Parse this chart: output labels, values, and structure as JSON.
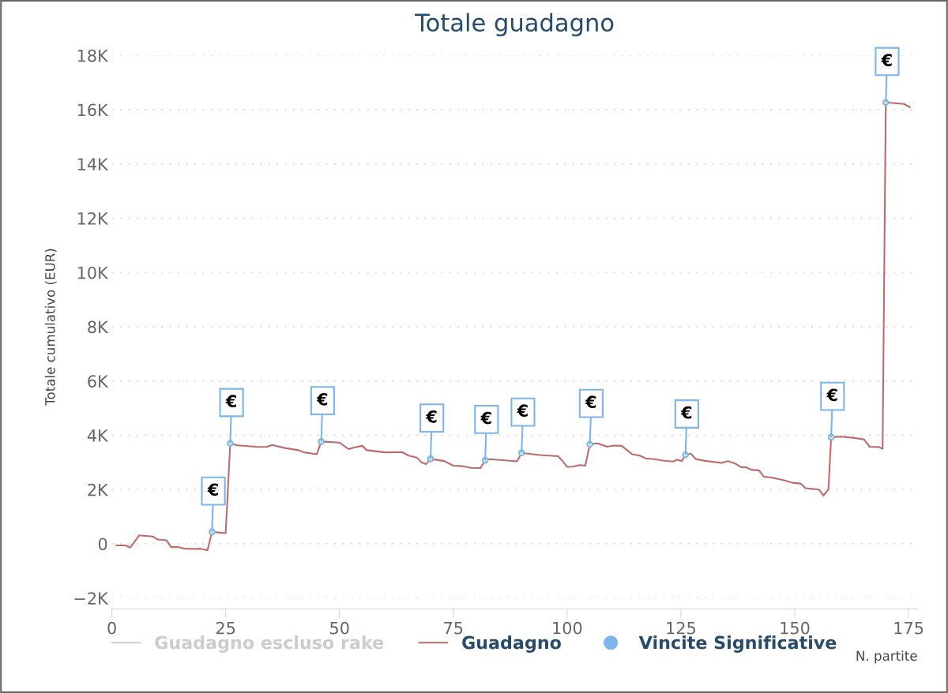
{
  "chart_data": {
    "type": "line",
    "title": "Totale guadagno",
    "xlabel": "N. partite",
    "ylabel": "Totale cumulativo (EUR)",
    "xlim": [
      0,
      177
    ],
    "xticks": [
      0,
      25,
      50,
      75,
      100,
      125,
      150,
      175
    ],
    "ylim": [
      -2000,
      18000
    ],
    "yticks": [
      {
        "value": -2000,
        "label": "−2K"
      },
      0,
      {
        "value": 2000,
        "label": "2K"
      },
      {
        "value": 4000,
        "label": "4K"
      },
      {
        "value": 6000,
        "label": "6K"
      },
      {
        "value": 8000,
        "label": "8K"
      },
      {
        "value": 10000,
        "label": "10K"
      },
      {
        "value": 12000,
        "label": "12K"
      },
      {
        "value": 14000,
        "label": "14K"
      },
      {
        "value": 16000,
        "label": "16K"
      },
      {
        "value": 18000,
        "label": "18K"
      }
    ],
    "grid": "y",
    "legend": "bottom",
    "line_style": "solid",
    "series": [
      {
        "name": "Guadagno escluso rake",
        "type": "line",
        "color": "#cccccc"
      },
      {
        "name": "Guadagno",
        "color": "#c0696b",
        "marker": "none",
        "x": [
          1,
          3,
          4,
          6,
          9,
          10,
          12,
          13,
          14.5,
          16,
          18.3,
          19.5,
          21,
          22,
          25,
          26,
          27.6,
          32,
          34,
          35.2,
          38,
          41,
          42.2,
          45,
          46,
          50,
          52,
          53.2,
          55,
          56,
          60,
          63.7,
          65.2,
          67,
          68,
          69,
          70,
          73,
          75,
          77,
          79,
          81,
          82,
          83,
          89,
          90,
          92,
          94,
          98,
          99,
          100,
          101.5,
          102.7,
          104,
          105,
          106.7,
          108.8,
          110.3,
          112,
          114.3,
          116,
          117.2,
          119.2,
          121,
          123.3,
          124.2,
          125.2,
          126,
          127.2,
          128.3,
          130.6,
          134,
          135.3,
          137,
          138.3,
          139.3,
          140.5,
          142.2,
          143.2,
          144.6,
          147.5,
          149.5,
          151.3,
          152.4,
          155.3,
          156.3,
          157.4,
          158,
          160.3,
          163.2,
          165.2,
          166.5,
          168.4,
          169.3,
          170,
          174,
          175.3
        ],
        "values": [
          -60,
          -60,
          -140,
          310,
          270,
          160,
          130,
          -120,
          -120,
          -180,
          -190,
          -180,
          -240,
          440,
          390,
          3700,
          3630,
          3570,
          3570,
          3640,
          3530,
          3450,
          3370,
          3300,
          3770,
          3730,
          3490,
          3550,
          3610,
          3450,
          3370,
          3380,
          3250,
          3180,
          3000,
          2940,
          3130,
          3050,
          2880,
          2860,
          2800,
          2790,
          3080,
          3120,
          3040,
          3350,
          3310,
          3270,
          3230,
          3050,
          2830,
          2850,
          2900,
          2880,
          3670,
          3700,
          3580,
          3620,
          3610,
          3300,
          3250,
          3150,
          3120,
          3070,
          3030,
          3100,
          3050,
          3280,
          3320,
          3120,
          3050,
          2980,
          3050,
          2950,
          2820,
          2820,
          2730,
          2700,
          2470,
          2450,
          2350,
          2250,
          2220,
          2050,
          2000,
          1780,
          2000,
          3930,
          3950,
          3900,
          3850,
          3570,
          3570,
          3500,
          16270,
          16210,
          16090
        ]
      },
      {
        "name": "Vincite Significative",
        "type": "scatter",
        "color": "#7cb5ec",
        "marker": "circle",
        "x": [
          22,
          26,
          46,
          70,
          82,
          90,
          105,
          126,
          158,
          170
        ],
        "values": [
          440,
          3700,
          3770,
          3130,
          3080,
          3350,
          3670,
          3280,
          3930,
          16270
        ]
      }
    ],
    "annotations": [
      {
        "text": "€",
        "x": 22,
        "y": 440
      },
      {
        "text": "€",
        "x": 26,
        "y": 3700
      },
      {
        "text": "€",
        "x": 46,
        "y": 3770
      },
      {
        "text": "€",
        "x": 70,
        "y": 3130
      },
      {
        "text": "€",
        "x": 82,
        "y": 3080
      },
      {
        "text": "€",
        "x": 90,
        "y": 3350
      },
      {
        "text": "€",
        "x": 105,
        "y": 3670
      },
      {
        "text": "€",
        "x": 126,
        "y": 3280
      },
      {
        "text": "€",
        "x": 158,
        "y": 3930
      },
      {
        "text": "€",
        "x": 170,
        "y": 16270
      }
    ]
  }
}
